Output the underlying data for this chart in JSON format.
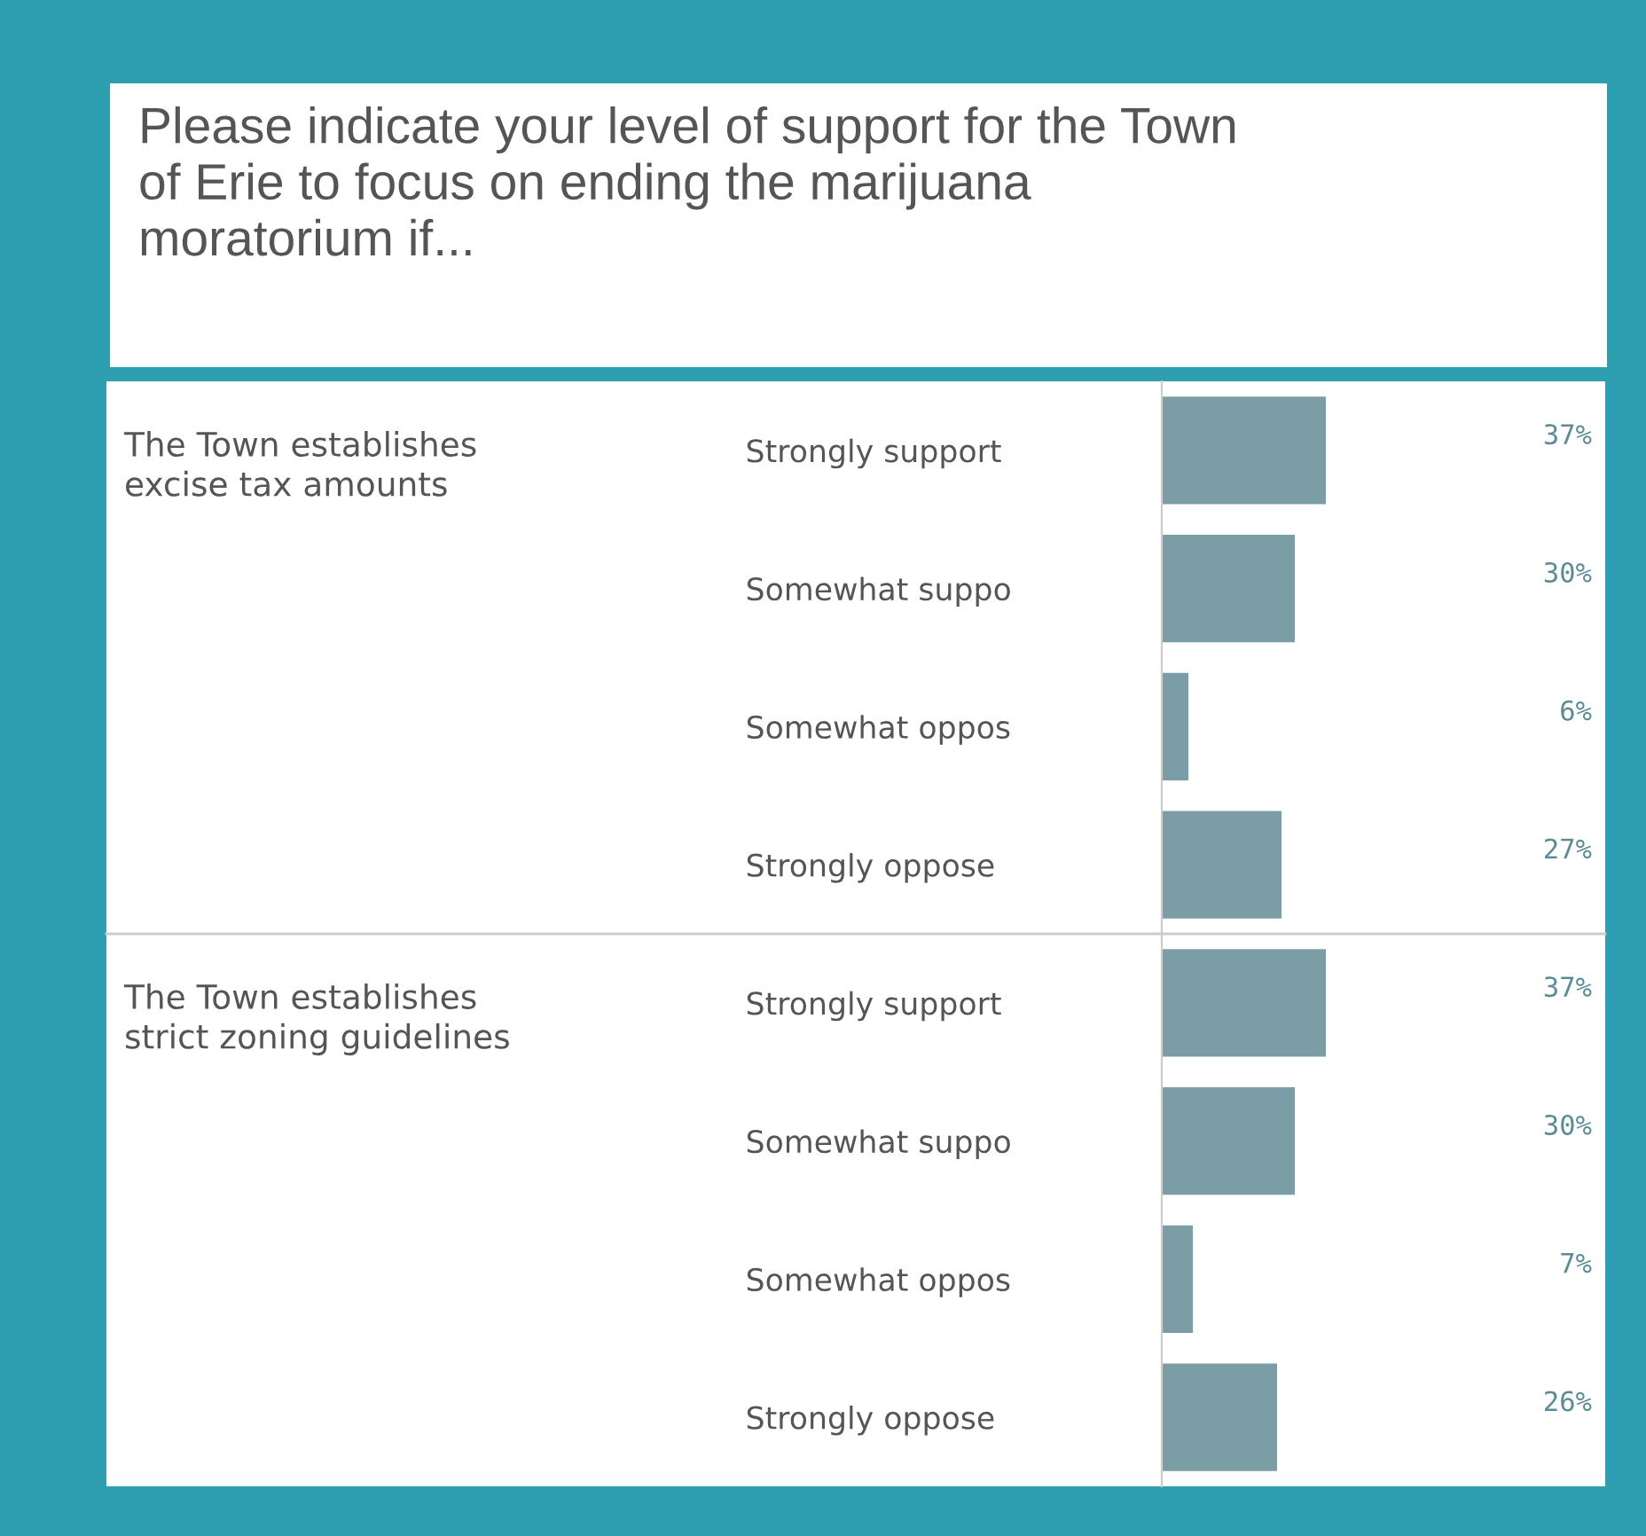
{
  "chart_data": [
    {
      "type": "bar",
      "orientation": "horizontal",
      "title": "Please indicate your level of support for the Town\nof Erie to focus on ending the marijuana\nmoratorium if...",
      "ylabel": "The Town establishes\nexcise tax amounts",
      "categories": [
        "Strongly support",
        "Somewhat suppo",
        "Somewhat oppos",
        "Strongly oppose"
      ],
      "values": [
        37,
        30,
        6,
        27
      ],
      "value_labels": [
        "37%",
        "30%",
        "6%",
        "27%"
      ],
      "color": "#7b9ea6",
      "xlim": [
        0,
        100
      ],
      "tick_labels": "y",
      "grid": false,
      "legend": false
    },
    {
      "type": "bar",
      "orientation": "horizontal",
      "ylabel": "The Town establishes\nstrict zoning guidelines",
      "categories": [
        "Strongly support",
        "Somewhat suppo",
        "Somewhat oppos",
        "Strongly oppose"
      ],
      "values": [
        37,
        30,
        7,
        26
      ],
      "value_labels": [
        "37%",
        "30%",
        "7%",
        "26%"
      ],
      "color": "#7b9ea6",
      "xlim": [
        0,
        100
      ],
      "tick_labels": "y",
      "grid": false,
      "legend": false
    }
  ]
}
